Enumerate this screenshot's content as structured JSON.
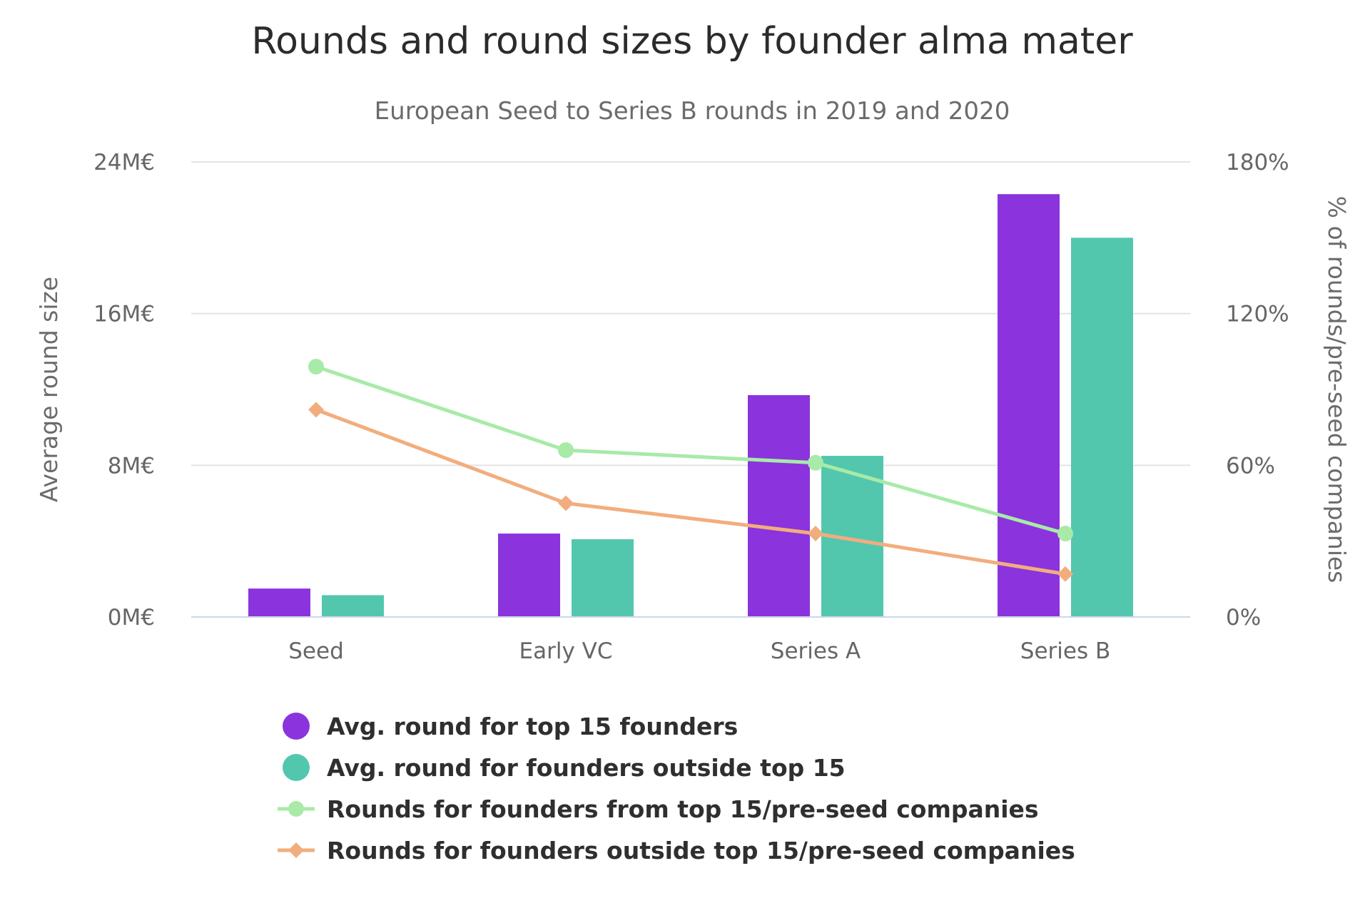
{
  "chart_data": {
    "type": "bar",
    "title": "Rounds and round sizes by founder alma mater",
    "subtitle": "European Seed to Series B rounds in 2019 and 2020",
    "categories": [
      "Seed",
      "Early VC",
      "Series A",
      "Series B"
    ],
    "y_left": {
      "label": "Average round size",
      "range": [
        0,
        24
      ],
      "unit": "M€",
      "ticks": [
        "0M€",
        "8M€",
        "16M€",
        "24M€"
      ],
      "tick_values": [
        0,
        8,
        16,
        24
      ]
    },
    "y_right": {
      "label": "% of rounds/pre-seed companies",
      "range": [
        0,
        180
      ],
      "unit": "%",
      "ticks": [
        "0%",
        "60%",
        "120%",
        "180%"
      ],
      "tick_values": [
        0,
        60,
        120,
        180
      ]
    },
    "series": [
      {
        "name": "Avg. round for top 15 founders",
        "type": "bar",
        "axis": "left",
        "color": "#8b33dd",
        "values": [
          1.5,
          4.4,
          11.7,
          22.3
        ]
      },
      {
        "name": "Avg. round for founders outside top 15",
        "type": "bar",
        "axis": "left",
        "color": "#53c7ad",
        "values": [
          1.15,
          4.1,
          8.5,
          20.0
        ]
      },
      {
        "name": "Rounds for founders from top 15/pre-seed companies",
        "type": "line",
        "axis": "right",
        "color": "#a8eaa8",
        "marker": "circle",
        "values": [
          99,
          66,
          61,
          33
        ]
      },
      {
        "name": "Rounds for founders outside top 15/pre-seed companies",
        "type": "line",
        "axis": "right",
        "color": "#f2ad7e",
        "marker": "diamond",
        "values": [
          82,
          45,
          33,
          17
        ]
      }
    ],
    "grid": true,
    "legend_position": "bottom"
  }
}
